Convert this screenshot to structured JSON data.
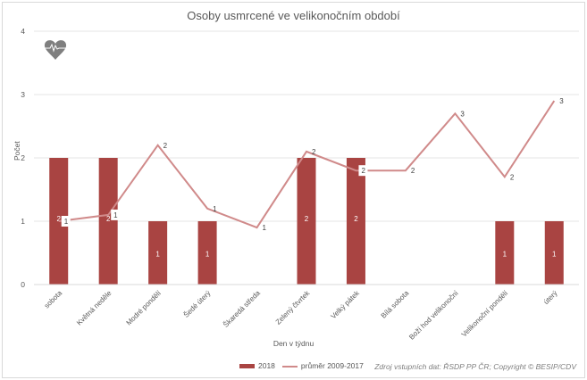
{
  "chart": {
    "title": "Osoby usmrcené ve velikonočním období",
    "ylabel": "Počet",
    "xlabel": "Den v týdnu",
    "source": "Zdroj vstupních dat: ŘSDP PP ČR; Copyright © BESIP/CDV",
    "legend": {
      "bar_label": "2018",
      "line_label": "průměr 2009-2017"
    },
    "colors": {
      "bar": "#a94442",
      "line": "#d08a8a",
      "grid": "#e6e6e6",
      "text": "#595959"
    },
    "icon": "heart-pulse-icon"
  },
  "chart_data": {
    "type": "bar",
    "title": "Osoby usmrcené ve velikonočním období",
    "xlabel": "Den v týdnu",
    "ylabel": "Počet",
    "ylim": [
      0,
      4
    ],
    "yticks": [
      0,
      1,
      2,
      3,
      4
    ],
    "grid": true,
    "legend_position": "bottom",
    "categories": [
      "sobota",
      "Květná neděle",
      "Modré pondělí",
      "Šedé úterý",
      "Škaredá středa",
      "Zelený čtvrtek",
      "Velký pátek",
      "Bílá sobota",
      "Boží hod velikonoční",
      "Velikonoční pondělí",
      "úterý"
    ],
    "series": [
      {
        "name": "2018",
        "type": "bar",
        "values": [
          2,
          2,
          1,
          1,
          0,
          2,
          2,
          0,
          0,
          1,
          1
        ],
        "labels": [
          "2",
          "2",
          "1",
          "1",
          "",
          "2",
          "2",
          "",
          "",
          "1",
          "1"
        ]
      },
      {
        "name": "průměr 2009-2017",
        "type": "line",
        "values": [
          1.0,
          1.1,
          2.2,
          1.2,
          0.9,
          2.1,
          1.8,
          1.8,
          2.7,
          1.7,
          2.9
        ],
        "labels": [
          "1",
          "1",
          "2",
          "1",
          "1",
          "2",
          "2",
          "2",
          "3",
          "2",
          "3"
        ]
      }
    ]
  }
}
